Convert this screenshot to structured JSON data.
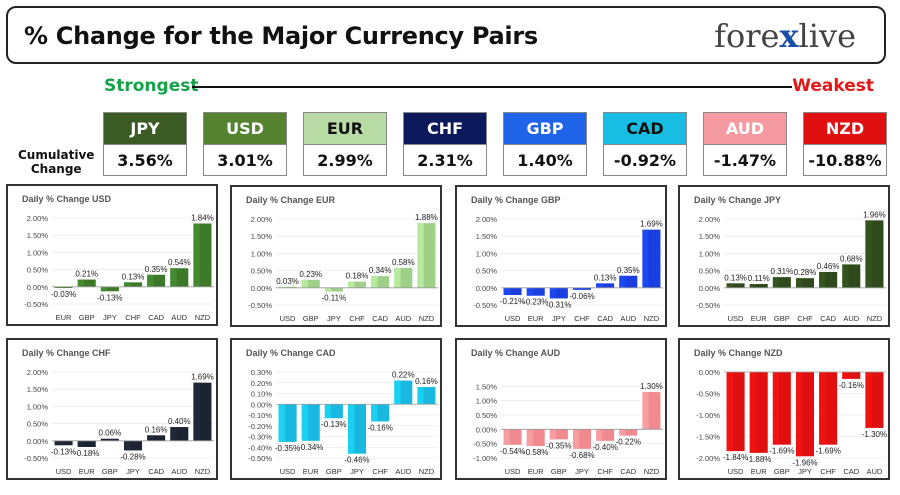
{
  "header": {
    "title": "% Change for the Major Currency Pairs",
    "logo_left": "fore",
    "logo_x": "x",
    "logo_right": "live"
  },
  "strength": {
    "strongest": "Strongest",
    "weakest": "Weakest",
    "cumulative_label_1": "Cumulative",
    "cumulative_label_2": "Change"
  },
  "summary": [
    {
      "code": "JPY",
      "value": "3.56%",
      "bg": "#3c5a23",
      "fg": "#ffffff"
    },
    {
      "code": "USD",
      "value": "3.01%",
      "bg": "#56832f",
      "fg": "#ffffff"
    },
    {
      "code": "EUR",
      "value": "2.99%",
      "bg": "#b9dca7",
      "fg": "#111111"
    },
    {
      "code": "CHF",
      "value": "2.31%",
      "bg": "#0c1a5c",
      "fg": "#ffffff"
    },
    {
      "code": "GBP",
      "value": "1.40%",
      "bg": "#1f63e8",
      "fg": "#ffffff"
    },
    {
      "code": "CAD",
      "value": "-0.92%",
      "bg": "#18bde4",
      "fg": "#111111"
    },
    {
      "code": "AUD",
      "value": "-1.47%",
      "bg": "#f59aa0",
      "fg": "#ffffff"
    },
    {
      "code": "NZD",
      "value": "-10.88%",
      "bg": "#e01010",
      "fg": "#ffffff"
    }
  ],
  "chart_data": [
    {
      "type": "bar",
      "title": "Daily % Change USD",
      "color": "#3c7a2a",
      "categories": [
        "EUR",
        "GBP",
        "JPY",
        "CHF",
        "CAD",
        "AUD",
        "NZD"
      ],
      "values": [
        -0.03,
        0.21,
        -0.13,
        0.13,
        0.35,
        0.54,
        1.84
      ],
      "labels": [
        "-0.03%",
        "0.21%",
        "-0.13%",
        "0.13%",
        "0.35%",
        "0.54%",
        "1.84%"
      ],
      "ylim": [
        -0.5,
        2.0
      ],
      "ticks": [
        2.0,
        1.5,
        1.0,
        0.5,
        0.0,
        -0.5
      ],
      "tick_labels": [
        "2.00%",
        "1.50%",
        "1.00%",
        "0.50%",
        "0.00%",
        "-0.50%"
      ]
    },
    {
      "type": "bar",
      "title": "Daily % Change EUR",
      "color": "#9fd08a",
      "categories": [
        "USD",
        "GBP",
        "JPY",
        "CHF",
        "CAD",
        "AUD",
        "NZD"
      ],
      "values": [
        0.03,
        0.23,
        -0.11,
        0.18,
        0.34,
        0.58,
        1.88
      ],
      "labels": [
        "0.03%",
        "0.23%",
        "-0.11%",
        "0.18%",
        "0.34%",
        "0.58%",
        "1.88%"
      ],
      "ylim": [
        -0.5,
        2.0
      ],
      "ticks": [
        2.0,
        1.5,
        1.0,
        0.5,
        0.0,
        -0.5
      ],
      "tick_labels": [
        "2.00%",
        "1.50%",
        "1.00%",
        "0.50%",
        "0.00%",
        "-0.50%"
      ]
    },
    {
      "type": "bar",
      "title": "Daily % Change GBP",
      "color": "#1a3fe0",
      "categories": [
        "USD",
        "EUR",
        "JPY",
        "CHF",
        "CAD",
        "AUD",
        "NZD"
      ],
      "values": [
        -0.21,
        -0.23,
        -0.31,
        -0.06,
        0.13,
        0.35,
        1.69
      ],
      "labels": [
        "-0.21%",
        "-0.23%",
        "-0.31%",
        "-0.06%",
        "0.13%",
        "0.35%",
        "1.69%"
      ],
      "ylim": [
        -0.5,
        2.0
      ],
      "ticks": [
        2.0,
        1.5,
        1.0,
        0.5,
        0.0,
        -0.5
      ],
      "tick_labels": [
        "2.00%",
        "1.50%",
        "1.00%",
        "0.50%",
        "0.00%",
        "-0.50%"
      ]
    },
    {
      "type": "bar",
      "title": "Daily % Change JPY",
      "color": "#2e4a1c",
      "categories": [
        "USD",
        "EUR",
        "GBP",
        "CHF",
        "CAD",
        "AUD",
        "NZD"
      ],
      "values": [
        0.13,
        0.11,
        0.31,
        0.28,
        0.46,
        0.68,
        1.96
      ],
      "labels": [
        "0.13%",
        "0.11%",
        "0.31%",
        "0.28%",
        "0.46%",
        "0.68%",
        "1.96%"
      ],
      "ylim": [
        -0.5,
        2.0
      ],
      "ticks": [
        2.0,
        1.5,
        1.0,
        0.5,
        0.0,
        -0.5
      ],
      "tick_labels": [
        "2.00%",
        "1.50%",
        "1.00%",
        "0.50%",
        "0.00%",
        "-0.50%"
      ]
    },
    {
      "type": "bar",
      "title": "Daily % Change CHF",
      "color": "#1c2433",
      "categories": [
        "USD",
        "EUR",
        "GBP",
        "JPY",
        "CAD",
        "AUD",
        "NZD"
      ],
      "values": [
        -0.13,
        -0.18,
        0.06,
        -0.28,
        0.16,
        0.4,
        1.69
      ],
      "labels": [
        "-0.13%",
        "-0.18%",
        "0.06%",
        "-0.28%",
        "0.16%",
        "0.40%",
        "1.69%"
      ],
      "ylim": [
        -0.5,
        2.0
      ],
      "ticks": [
        2.0,
        1.5,
        1.0,
        0.5,
        0.0,
        -0.5
      ],
      "tick_labels": [
        "2.00%",
        "1.50%",
        "1.00%",
        "0.50%",
        "0.00%",
        "-0.50%"
      ]
    },
    {
      "type": "bar",
      "title": "Daily % Change CAD",
      "color": "#18b8e0",
      "categories": [
        "USD",
        "EUR",
        "GBP",
        "JPY",
        "CHF",
        "AUD",
        "NZD"
      ],
      "values": [
        -0.35,
        -0.34,
        -0.13,
        -0.46,
        -0.16,
        0.22,
        0.16
      ],
      "labels": [
        "-0.35%",
        "-0.34%",
        "-0.13%",
        "-0.46%",
        "-0.16%",
        "0.22%",
        "0.16%"
      ],
      "ylim": [
        -0.5,
        0.3
      ],
      "ticks": [
        0.3,
        0.2,
        0.1,
        0.0,
        -0.1,
        -0.2,
        -0.3,
        -0.4,
        -0.5
      ],
      "tick_labels": [
        "0.30%",
        "0.20%",
        "0.10%",
        "0.00%",
        "-0.10%",
        "-0.20%",
        "-0.30%",
        "-0.40%",
        "-0.50%"
      ]
    },
    {
      "type": "bar",
      "title": "Daily % Change AUD",
      "color": "#f08a8e",
      "categories": [
        "USD",
        "EUR",
        "GBP",
        "JPY",
        "CHF",
        "CAD",
        "NZD"
      ],
      "values": [
        -0.54,
        -0.58,
        -0.35,
        -0.68,
        -0.4,
        -0.22,
        1.3
      ],
      "labels": [
        "-0.54%",
        "-0.58%",
        "-0.35%",
        "-0.68%",
        "-0.40%",
        "-0.22%",
        "1.30%"
      ],
      "ylim": [
        -1.0,
        2.0
      ],
      "ticks": [
        1.5,
        1.0,
        0.5,
        0.0,
        -0.5,
        -1.0
      ],
      "tick_labels": [
        "1.50%",
        "1.00%",
        "0.50%",
        "0.00%",
        "-0.50%",
        "-1.00%"
      ]
    },
    {
      "type": "bar",
      "title": "Daily % Change NZD",
      "color": "#e01010",
      "categories": [
        "USD",
        "EUR",
        "GBP",
        "JPY",
        "CHF",
        "CAD",
        "AUD"
      ],
      "values": [
        -1.84,
        -1.88,
        -1.69,
        -1.96,
        -1.69,
        -0.16,
        -1.3
      ],
      "labels": [
        "-1.84%",
        "-1.88%",
        "-1.69%",
        "-1.96%",
        "-1.69%",
        "-0.16%",
        "-1.30%"
      ],
      "ylim": [
        -2.0,
        0.0
      ],
      "ticks": [
        0.0,
        -0.5,
        -1.0,
        -1.5,
        -2.0
      ],
      "tick_labels": [
        "0.00%",
        "-0.50%",
        "-1.00%",
        "-1.50%",
        "-2.00%"
      ]
    }
  ]
}
